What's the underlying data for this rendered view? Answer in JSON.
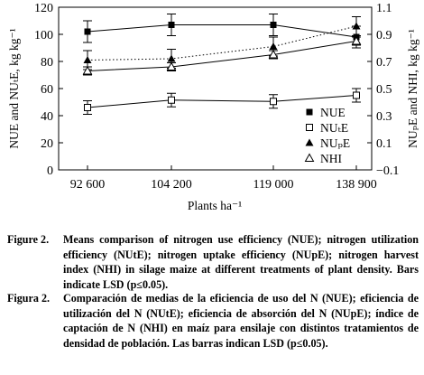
{
  "chart_data": {
    "type": "line",
    "x_categories": [
      "92 600",
      "104 200",
      "119 000",
      "138 900"
    ],
    "xlabel": "Plants ha⁻¹",
    "ylabel_left": "NUE and NUₜE, kg kg⁻¹",
    "ylabel_right": "NUₚE and NHI, kg kg⁻¹",
    "y_left": {
      "min": 0,
      "max": 120,
      "ticks": [
        0,
        20,
        40,
        60,
        80,
        100,
        120
      ]
    },
    "y_right": {
      "min": -0.1,
      "max": 1.1,
      "ticks": [
        "−0.1",
        "0.1",
        "0.3",
        "0.5",
        "0.7",
        "0.9",
        "1.1"
      ]
    },
    "series": [
      {
        "name": "NUE",
        "axis": "left",
        "marker": "filled-square",
        "line": "solid",
        "values": [
          102,
          107,
          107,
          98
        ],
        "lsd": [
          8,
          8,
          8,
          8
        ]
      },
      {
        "name": "NUₜE",
        "axis": "left",
        "marker": "open-square",
        "line": "solid",
        "values": [
          46,
          51.5,
          50.5,
          55
        ],
        "lsd": [
          5,
          5,
          5,
          5
        ]
      },
      {
        "name": "NUₚE",
        "axis": "right",
        "marker": "filled-triangle",
        "line": "dotted",
        "values": [
          0.71,
          0.72,
          0.81,
          0.96
        ],
        "lsd": [
          0.07,
          0.07,
          0.07,
          0.07
        ]
      },
      {
        "name": "NHI",
        "axis": "right",
        "marker": "open-triangle",
        "line": "solid",
        "values": [
          0.63,
          0.66,
          0.75,
          0.85
        ],
        "lsd": [
          0.03,
          0.03,
          0.03,
          0.03
        ]
      }
    ],
    "legend": "center-right",
    "grid": false
  },
  "captions": {
    "en": {
      "label": "Figure 2.",
      "text": "Means comparison of nitrogen use efficiency (NUE); nitrogen utilization efficiency (NUtE); nitrogen uptake efficiency (NUpE); nitrogen harvest index (NHI) in silage maize at different treatments of plant density. Bars indicate LSD (p≤0.05)."
    },
    "es": {
      "label": "Figura 2.",
      "text": "Comparación de medias de la eficiencia de uso del N (NUE); eficiencia de utilización del N (NUtE); eficiencia de absorción del N (NUpE); índice de captación de N (NHI) en maíz para ensilaje con distintos tratamientos de densidad de población. Las barras indican LSD (p≤0.05)."
    }
  }
}
